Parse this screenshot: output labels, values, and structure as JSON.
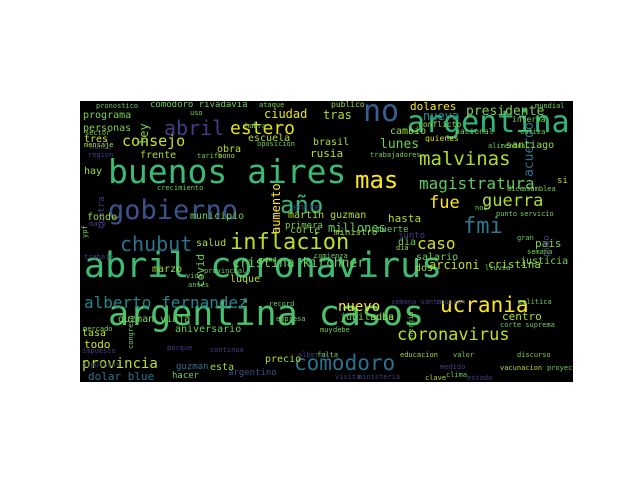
{
  "word_cloud": {
    "background": "#000000",
    "page_background": "#ffffff",
    "words": [
      {
        "text": "abril coronavirus",
        "color": "#3fbc73"
      },
      {
        "text": "argentina casos",
        "color": "#4ac16d"
      },
      {
        "text": "buenos aires",
        "color": "#3aba76"
      },
      {
        "text": "argentina",
        "color": "#31b57b"
      },
      {
        "text": "gobierno",
        "color": "#3b528b"
      },
      {
        "text": "año",
        "color": "#35b779"
      },
      {
        "text": "no",
        "color": "#355f8d"
      },
      {
        "text": "mas",
        "color": "#fde725"
      },
      {
        "text": "inflacion",
        "color": "#bddf26"
      },
      {
        "text": "chubut",
        "color": "#2c728e"
      },
      {
        "text": "fmi",
        "color": "#2a788e"
      },
      {
        "text": "ucrania",
        "color": "#fde725"
      },
      {
        "text": "comodoro",
        "color": "#2c728e"
      },
      {
        "text": "coronavirus",
        "color": "#bddf26"
      },
      {
        "text": "abril",
        "color": "#433e85"
      },
      {
        "text": "estero",
        "color": "#e5e419"
      },
      {
        "text": "malvinas",
        "color": "#addc30"
      },
      {
        "text": "alberto fernandez",
        "color": "#25848e"
      },
      {
        "text": "guerra",
        "color": "#addc30"
      },
      {
        "text": "consejo",
        "color": "#cae11f"
      },
      {
        "text": "magistratura",
        "color": "#5ec962"
      },
      {
        "text": "cristina kirchner",
        "color": "#6ece58"
      },
      {
        "text": "caso",
        "color": "#d2e21b"
      },
      {
        "text": "fue",
        "color": "#fde725"
      },
      {
        "text": "nueva",
        "color": "#21918c"
      },
      {
        "text": "presidente",
        "color": "#7ad151"
      },
      {
        "text": "provincia",
        "color": "#bddf26"
      },
      {
        "text": "nuevo",
        "color": "#fde725"
      },
      {
        "text": "ciudad",
        "color": "#e5e419"
      },
      {
        "text": "lunes",
        "color": "#6ece58"
      },
      {
        "text": "acuerdo",
        "color": "#2c728e"
      },
      {
        "text": "programa",
        "color": "#7ad151"
      },
      {
        "text": "comodoro rivadavia",
        "color": "#6ece58"
      },
      {
        "text": "dolares",
        "color": "#fde725"
      },
      {
        "text": "tras",
        "color": "#addc30"
      },
      {
        "text": "aumento",
        "color": "#fde725"
      },
      {
        "text": "millones",
        "color": "#5ec962"
      },
      {
        "text": "arcioni",
        "color": "#bddf26"
      },
      {
        "text": "cristina",
        "color": "#a0da39"
      },
      {
        "text": "centro",
        "color": "#addc30"
      },
      {
        "text": "martin guzman",
        "color": "#b5de2b"
      },
      {
        "text": "guzman viaja",
        "color": "#7ad151"
      },
      {
        "text": "dolar blue",
        "color": "#2c728e"
      },
      {
        "text": "hasta",
        "color": "#addc30"
      },
      {
        "text": "pais",
        "color": "#7ad151"
      },
      {
        "text": "rusia",
        "color": "#bddf26"
      },
      {
        "text": "brasil",
        "color": "#addc30"
      },
      {
        "text": "santiago",
        "color": "#a0da39"
      },
      {
        "text": "cambio",
        "color": "#a0da39"
      },
      {
        "text": "personas",
        "color": "#7ad151"
      },
      {
        "text": "fondo",
        "color": "#a0da39"
      },
      {
        "text": "municipio",
        "color": "#6ece58"
      },
      {
        "text": "corte",
        "color": "#7ad151"
      },
      {
        "text": "escuela",
        "color": "#addc30"
      },
      {
        "text": "obra",
        "color": "#bddf26"
      },
      {
        "text": "frente",
        "color": "#addc30"
      },
      {
        "text": "hay",
        "color": "#a0da39"
      },
      {
        "text": "todo",
        "color": "#d2e21b"
      },
      {
        "text": "marzo",
        "color": "#a0da39"
      },
      {
        "text": "luque",
        "color": "#bddf26"
      },
      {
        "text": "precio",
        "color": "#addc30"
      },
      {
        "text": "esta",
        "color": "#a0da39"
      },
      {
        "text": "suba",
        "color": "#bddf26"
      },
      {
        "text": "tasa",
        "color": "#bddf26"
      },
      {
        "text": "salario",
        "color": "#6ece58"
      },
      {
        "text": "dos",
        "color": "#a0da39"
      },
      {
        "text": "justicia",
        "color": "#7ad151"
      },
      {
        "text": "dia",
        "color": "#6ece58"
      },
      {
        "text": "primera",
        "color": "#7ad151"
      },
      {
        "text": "ministro",
        "color": "#a0da39"
      },
      {
        "text": "salud",
        "color": "#addc30"
      },
      {
        "text": "tres",
        "color": "#d2e21b"
      },
      {
        "text": "jubilados",
        "color": "#6ece58"
      },
      {
        "text": "aniversario",
        "color": "#6ece58"
      },
      {
        "text": "guzman",
        "color": "#2c728e"
      },
      {
        "text": "hacer",
        "color": "#7ad151"
      },
      {
        "text": "argentino",
        "color": "#3b528b"
      },
      {
        "text": "ley",
        "color": "#7ad151"
      },
      {
        "text": "covid",
        "color": "#6ece58"
      },
      {
        "text": "muerte",
        "color": "#5ec962"
      },
      {
        "text": "junto",
        "color": "#433e85"
      },
      {
        "text": "pido",
        "color": "#433e85"
      },
      {
        "text": "contra",
        "color": "#433e85"
      },
      {
        "text": "nacional",
        "color": "#6ece58"
      },
      {
        "text": "conflicto",
        "color": "#a0da39"
      },
      {
        "text": "quienes",
        "color": "#d2e21b"
      },
      {
        "text": "si",
        "color": "#addc30"
      },
      {
        "text": "entre",
        "color": "#433e85"
      },
      {
        "text": "interna",
        "color": "#7ad151"
      },
      {
        "text": "pronostico",
        "color": "#6ece58"
      },
      {
        "text": "uso",
        "color": "#7ad151"
      },
      {
        "text": "ataque",
        "color": "#7ad151"
      },
      {
        "text": "publico",
        "color": "#a0da39"
      },
      {
        "text": "mundial",
        "color": "#6ece58"
      },
      {
        "text": "mundo",
        "color": "#433e85"
      },
      {
        "text": "sector",
        "color": "#7ad151"
      },
      {
        "text": "mensaje",
        "color": "#addc30"
      },
      {
        "text": "habra",
        "color": "#7ad151"
      },
      {
        "text": "oposicion",
        "color": "#6ece58"
      },
      {
        "text": "alimentos",
        "color": "#6ece58"
      },
      {
        "text": "cotiza",
        "color": "#7ad151"
      },
      {
        "text": "trabajadores",
        "color": "#7ad151"
      },
      {
        "text": "tarifa",
        "color": "#6ece58"
      },
      {
        "text": "bono",
        "color": "#addc30"
      },
      {
        "text": "region",
        "color": "#433e85"
      },
      {
        "text": "crecimiento",
        "color": "#6ece58"
      },
      {
        "text": "asamblea",
        "color": "#7ad151"
      },
      {
        "text": "dice",
        "color": "#7ad151"
      },
      {
        "text": "punto",
        "color": "#6ece58"
      },
      {
        "text": "servicio",
        "color": "#7ad151"
      },
      {
        "text": "pero",
        "color": "#7ad151"
      },
      {
        "text": "gran",
        "color": "#6ece58"
      },
      {
        "text": "comienza",
        "color": "#6ece58"
      },
      {
        "text": "trabajo",
        "color": "#433e85"
      },
      {
        "text": "semana",
        "color": "#6ece58"
      },
      {
        "text": "lluvia",
        "color": "#6ece58"
      },
      {
        "text": "provincial",
        "color": "#7ad151"
      },
      {
        "text": "anses",
        "color": "#6ece58"
      },
      {
        "text": "record",
        "color": "#6ece58"
      },
      {
        "text": "semana santa",
        "color": "#433e85"
      },
      {
        "text": "reunion",
        "color": "#433e85"
      },
      {
        "text": "politica",
        "color": "#6ece58"
      },
      {
        "text": "mercado",
        "color": "#7ad151"
      },
      {
        "text": "empresa",
        "color": "#7ad151"
      },
      {
        "text": "corte suprema",
        "color": "#6ece58"
      },
      {
        "text": "congreso",
        "color": "#7ad151"
      },
      {
        "text": "energia",
        "color": "#6ece58"
      },
      {
        "text": "porque",
        "color": "#433e85"
      },
      {
        "text": "muy",
        "color": "#7ad151"
      },
      {
        "text": "debe",
        "color": "#6ece58"
      },
      {
        "text": "alberto",
        "color": "#433e85"
      },
      {
        "text": "falta",
        "color": "#7ad151"
      },
      {
        "text": "educacion",
        "color": "#addc30"
      },
      {
        "text": "valor",
        "color": "#6ece58"
      },
      {
        "text": "discurso",
        "color": "#7ad151"
      },
      {
        "text": "vacunacion",
        "color": "#addc30"
      },
      {
        "text": "proyecto",
        "color": "#6ece58"
      },
      {
        "text": "clave",
        "color": "#addc30"
      },
      {
        "text": "clima",
        "color": "#6ece58"
      },
      {
        "text": "estado",
        "color": "#433e85"
      },
      {
        "text": "visita",
        "color": "#433e85"
      },
      {
        "text": "ministeria",
        "color": "#433e85"
      },
      {
        "text": "impuesto",
        "color": "#433e85"
      },
      {
        "text": "diputados",
        "color": "#433e85"
      },
      {
        "text": "continua",
        "color": "#433e85"
      },
      {
        "text": "ypf",
        "color": "#7ad151"
      },
      {
        "text": "mayo",
        "color": "#433e85"
      },
      {
        "text": "vida",
        "color": "#6ece58"
      },
      {
        "text": "medido",
        "color": "#433e85"
      },
      {
        "text": "nos",
        "color": "#7ad151"
      },
      {
        "text": "dia",
        "color": "#a0da39"
      }
    ]
  }
}
